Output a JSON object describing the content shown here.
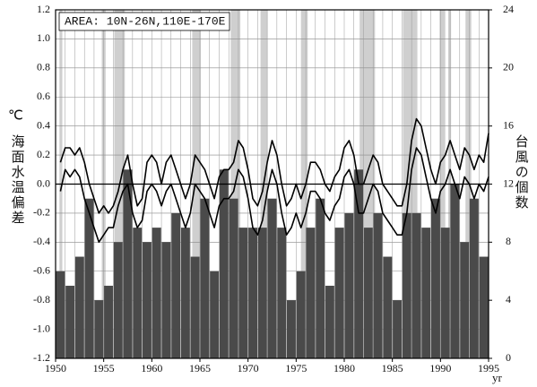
{
  "chart_data": {
    "type": "combo",
    "annotation": "AREA: 10N-26N,110E-170E",
    "ylabel": "海面水温偏差",
    "ylabel_unit": "℃",
    "y2label": "台風の個数",
    "xlabel": "yr",
    "xlim": [
      1950,
      1995
    ],
    "xticks": [
      1950,
      1955,
      1960,
      1965,
      1970,
      1975,
      1980,
      1985,
      1990,
      1995
    ],
    "ylim": [
      -1.2,
      1.2
    ],
    "yticks": [
      1.2,
      {
        "value": 1.0,
        "label": "1.0"
      },
      0.8,
      0.6,
      0.4,
      0.2,
      {
        "value": 0.0,
        "label": "0.0"
      },
      -0.2,
      -0.4,
      -0.6,
      -0.8,
      {
        "value": -1.0,
        "label": "-1.0"
      },
      -1.2
    ],
    "y2lim": [
      0,
      24
    ],
    "y2ticks": [
      0,
      4,
      8,
      12,
      16,
      20,
      24
    ],
    "grid": true,
    "highlight_color": "#cfcfcf",
    "highlight_spans": [
      [
        1950.4,
        1950.7
      ],
      [
        1954.8,
        1955.2
      ],
      [
        1956.1,
        1957.2
      ],
      [
        1964.2,
        1965.1
      ],
      [
        1968.2,
        1969.2
      ],
      [
        1971.3,
        1972.0
      ],
      [
        1975.5,
        1976.2
      ],
      [
        1981.6,
        1983.2
      ],
      [
        1986.1,
        1987.6
      ],
      [
        1989.9,
        1990.5
      ],
      [
        1990.8,
        1991.1
      ],
      [
        1992.6,
        1993.2
      ]
    ],
    "series": [
      {
        "type": "bar",
        "axis": "y2",
        "color": "#4a4a4a",
        "x": [
          1950,
          1951,
          1952,
          1953,
          1954,
          1955,
          1956,
          1957,
          1958,
          1959,
          1960,
          1961,
          1962,
          1963,
          1964,
          1965,
          1966,
          1967,
          1968,
          1969,
          1970,
          1971,
          1972,
          1973,
          1974,
          1975,
          1976,
          1977,
          1978,
          1979,
          1980,
          1981,
          1982,
          1983,
          1984,
          1985,
          1986,
          1987,
          1988,
          1989,
          1990,
          1991,
          1992,
          1993,
          1994
        ],
        "values": [
          6,
          5,
          7,
          11,
          4,
          5,
          8,
          13,
          9,
          8,
          9,
          8,
          10,
          9,
          7,
          11,
          6,
          13,
          11,
          9,
          9,
          9,
          11,
          9,
          4,
          6,
          9,
          11,
          5,
          9,
          10,
          13,
          9,
          10,
          7,
          4,
          10,
          10,
          9,
          11,
          9,
          12,
          8,
          11,
          7
        ]
      },
      {
        "type": "line",
        "color": "#000000",
        "x": [
          1950.5,
          1951,
          1951.5,
          1952,
          1952.5,
          1953,
          1953.5,
          1954,
          1954.5,
          1955,
          1955.5,
          1956,
          1956.5,
          1957,
          1957.5,
          1958,
          1958.5,
          1959,
          1959.5,
          1960,
          1960.5,
          1961,
          1961.5,
          1962,
          1962.5,
          1963,
          1963.5,
          1964,
          1964.5,
          1965,
          1965.5,
          1966,
          1966.5,
          1967,
          1967.5,
          1968,
          1968.5,
          1969,
          1969.5,
          1970,
          1970.5,
          1971,
          1971.5,
          1972,
          1972.5,
          1973,
          1973.5,
          1974,
          1974.5,
          1975,
          1975.5,
          1976,
          1976.5,
          1977,
          1977.5,
          1978,
          1978.5,
          1979,
          1979.5,
          1980,
          1980.5,
          1981,
          1981.5,
          1982,
          1982.5,
          1983,
          1983.5,
          1984,
          1984.5,
          1985,
          1985.5,
          1986,
          1986.5,
          1987,
          1987.5,
          1988,
          1988.5,
          1989,
          1989.5,
          1990,
          1990.5,
          1991,
          1991.5,
          1992,
          1992.5,
          1993,
          1993.5,
          1994,
          1994.5,
          1995
        ],
        "values": [
          0.15,
          0.25,
          0.25,
          0.2,
          0.25,
          0.15,
          0.0,
          -0.1,
          -0.2,
          -0.15,
          -0.2,
          -0.15,
          -0.05,
          0.1,
          0.2,
          0.0,
          -0.15,
          -0.1,
          0.15,
          0.2,
          0.15,
          0.0,
          0.15,
          0.2,
          0.1,
          0.0,
          -0.1,
          0.0,
          0.2,
          0.15,
          0.1,
          0.0,
          -0.1,
          0.05,
          0.1,
          0.1,
          0.15,
          0.3,
          0.25,
          0.1,
          -0.1,
          -0.15,
          -0.05,
          0.15,
          0.3,
          0.2,
          0.0,
          -0.15,
          -0.1,
          0.0,
          -0.1,
          0.0,
          0.15,
          0.15,
          0.1,
          0.0,
          -0.05,
          0.05,
          0.1,
          0.25,
          0.3,
          0.2,
          0.0,
          0.0,
          0.1,
          0.2,
          0.15,
          0.0,
          -0.05,
          -0.1,
          -0.15,
          -0.15,
          0.0,
          0.3,
          0.45,
          0.4,
          0.25,
          0.1,
          0.0,
          0.15,
          0.2,
          0.3,
          0.2,
          0.1,
          0.25,
          0.2,
          0.1,
          0.2,
          0.15,
          0.35
        ]
      },
      {
        "type": "line",
        "color": "#000000",
        "x": [
          1950.5,
          1951,
          1951.5,
          1952,
          1952.5,
          1953,
          1953.5,
          1954,
          1954.5,
          1955,
          1955.5,
          1956,
          1956.5,
          1957,
          1957.5,
          1958,
          1958.5,
          1959,
          1959.5,
          1960,
          1960.5,
          1961,
          1961.5,
          1962,
          1962.5,
          1963,
          1963.5,
          1964,
          1964.5,
          1965,
          1965.5,
          1966,
          1966.5,
          1967,
          1967.5,
          1968,
          1968.5,
          1969,
          1969.5,
          1970,
          1970.5,
          1971,
          1971.5,
          1972,
          1972.5,
          1973,
          1973.5,
          1974,
          1974.5,
          1975,
          1975.5,
          1976,
          1976.5,
          1977,
          1977.5,
          1978,
          1978.5,
          1979,
          1979.5,
          1980,
          1980.5,
          1981,
          1981.5,
          1982,
          1982.5,
          1983,
          1983.5,
          1984,
          1984.5,
          1985,
          1985.5,
          1986,
          1986.5,
          1987,
          1987.5,
          1988,
          1988.5,
          1989,
          1989.5,
          1990,
          1990.5,
          1991,
          1991.5,
          1992,
          1992.5,
          1993,
          1993.5,
          1994,
          1994.5,
          1995
        ],
        "values": [
          -0.05,
          0.1,
          0.05,
          0.1,
          0.05,
          -0.1,
          -0.2,
          -0.3,
          -0.4,
          -0.35,
          -0.3,
          -0.3,
          -0.15,
          -0.05,
          0.0,
          -0.2,
          -0.3,
          -0.25,
          -0.05,
          0.0,
          -0.05,
          -0.15,
          -0.05,
          0.0,
          -0.1,
          -0.2,
          -0.3,
          -0.2,
          0.0,
          -0.05,
          -0.1,
          -0.2,
          -0.3,
          -0.15,
          -0.1,
          -0.1,
          -0.05,
          0.1,
          0.05,
          -0.1,
          -0.3,
          -0.35,
          -0.25,
          -0.05,
          0.1,
          0.0,
          -0.2,
          -0.35,
          -0.3,
          -0.2,
          -0.3,
          -0.2,
          -0.05,
          -0.05,
          -0.1,
          -0.2,
          -0.25,
          -0.15,
          -0.1,
          0.05,
          0.1,
          0.0,
          -0.2,
          -0.2,
          -0.1,
          0.0,
          -0.05,
          -0.2,
          -0.25,
          -0.3,
          -0.35,
          -0.35,
          -0.2,
          0.1,
          0.25,
          0.2,
          0.05,
          -0.1,
          -0.2,
          -0.05,
          0.0,
          0.1,
          0.0,
          -0.1,
          0.05,
          0.0,
          -0.1,
          0.0,
          -0.05,
          0.05
        ]
      }
    ]
  }
}
